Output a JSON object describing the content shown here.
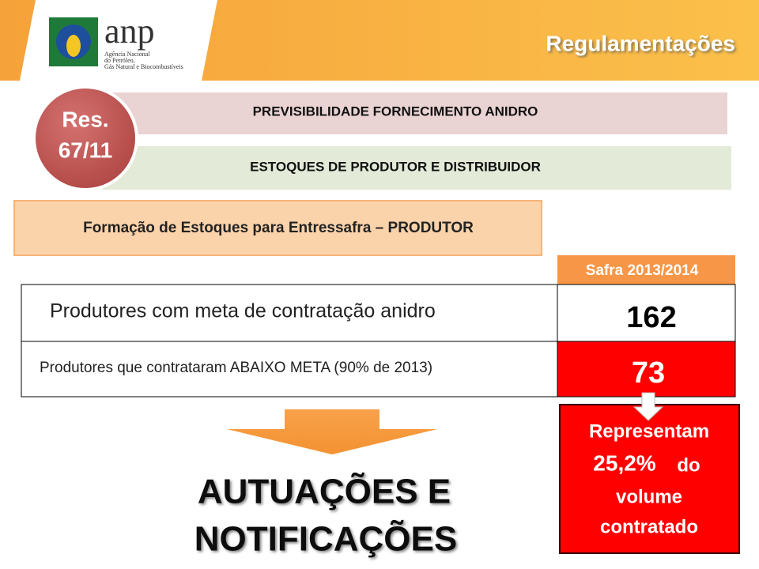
{
  "header": {
    "logo": "anp",
    "agency_lines": [
      "Agência Nacional",
      "do Petróleo,",
      "Gás Natural e Biocombustíveis"
    ],
    "title": "Regulamentações"
  },
  "badge": [
    "Res.",
    "67/11"
  ],
  "topics": [
    "PREVISIBILIDADE FORNECIMENTO ANIDRO",
    "ESTOQUES DE PRODUTOR E DISTRIBUIDOR"
  ],
  "section": "Formação de Estoques para Entressafra – PRODUTOR",
  "table": {
    "header": "Safra 2013/2014",
    "rows": [
      [
        "Produtores com meta de contratação anidro",
        "162"
      ],
      [
        "Produtores que contrataram ABAIXO META (90% de 2013)",
        "73"
      ]
    ]
  },
  "conclusion": [
    "AUTUAÇÕES E",
    "NOTIFICAÇÕES"
  ],
  "callout": [
    "Representam",
    "25,2%",
    "do",
    "volume",
    "contratado"
  ]
}
